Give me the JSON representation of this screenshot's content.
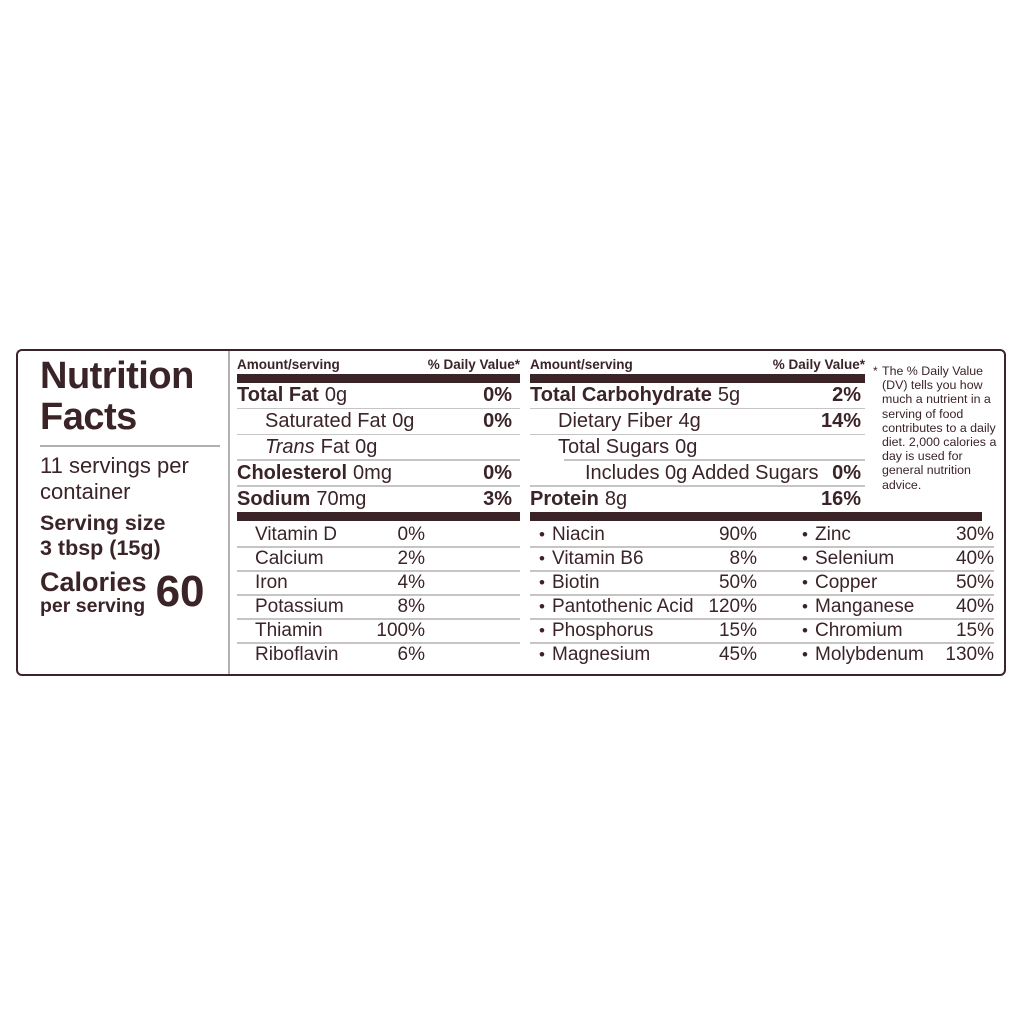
{
  "label": {
    "title_line1": "Nutrition",
    "title_line2": "Facts",
    "servings_line1": "11 servings per",
    "servings_line2": "container",
    "serving_size_line1": "Serving size",
    "serving_size_line2": "3 tbsp (15g)",
    "calories_label": "Calories",
    "calories_sub": "per serving",
    "calories_value": "60",
    "ink_color": "#3b2428"
  },
  "columns": {
    "amount_header": "Amount/serving",
    "dv_header": "% Daily Value*",
    "left_rows": [
      {
        "lead": "Total Fat",
        "bold": true,
        "rest": "0g",
        "dv": "0%",
        "indent": 0
      },
      {
        "lead": "Saturated Fat",
        "bold": false,
        "rest": "0g",
        "dv": "0%",
        "indent": 1
      },
      {
        "lead": "Trans",
        "bold": false,
        "italic": true,
        "rest": "Fat 0g",
        "dv": "",
        "indent": 1
      },
      {
        "lead": "Cholesterol",
        "bold": true,
        "rest": "0mg",
        "dv": "0%",
        "indent": 0
      },
      {
        "lead": "Sodium",
        "bold": true,
        "rest": "70mg",
        "dv": "3%",
        "indent": 0
      }
    ],
    "right_rows": [
      {
        "lead": "Total Carbohydrate",
        "bold": true,
        "rest": "5g",
        "dv": "2%",
        "indent": 0
      },
      {
        "lead": "Dietary Fiber",
        "bold": false,
        "rest": "4g",
        "dv": "14%",
        "indent": 1
      },
      {
        "lead": "Total Sugars",
        "bold": false,
        "rest": "0g",
        "dv": "",
        "indent": 1
      },
      {
        "lead": "Includes 0g Added Sugars",
        "bold": false,
        "rest": "",
        "dv": "0%",
        "indent": 2,
        "line_indent": true
      },
      {
        "lead": "Protein",
        "bold": true,
        "rest": "8g",
        "dv": "16%",
        "indent": 0
      }
    ]
  },
  "micronutrients": {
    "bullet": "•",
    "col1": [
      {
        "name": "Vitamin D",
        "dv": "0%"
      },
      {
        "name": "Calcium",
        "dv": "2%"
      },
      {
        "name": "Iron",
        "dv": "4%"
      },
      {
        "name": "Potassium",
        "dv": "8%"
      },
      {
        "name": "Thiamin",
        "dv": "100%"
      },
      {
        "name": "Riboflavin",
        "dv": "6%"
      }
    ],
    "col2": [
      {
        "name": "Niacin",
        "dv": "90%"
      },
      {
        "name": "Vitamin B6",
        "dv": "8%"
      },
      {
        "name": "Biotin",
        "dv": "50%"
      },
      {
        "name": "Pantothenic Acid",
        "dv": "120%"
      },
      {
        "name": "Phosphorus",
        "dv": "15%"
      },
      {
        "name": "Magnesium",
        "dv": "45%"
      }
    ],
    "col3": [
      {
        "name": "Zinc",
        "dv": "30%"
      },
      {
        "name": "Selenium",
        "dv": "40%"
      },
      {
        "name": "Copper",
        "dv": "50%"
      },
      {
        "name": "Manganese",
        "dv": "40%"
      },
      {
        "name": "Chromium",
        "dv": "15%"
      },
      {
        "name": "Molybdenum",
        "dv": "130%"
      }
    ]
  },
  "footnote": {
    "marker": "*",
    "text": "The % Daily Value (DV) tells you how much a nutrient in a serving of food contributes to a daily diet. 2,000 calories a day is used for general nutrition advice."
  }
}
